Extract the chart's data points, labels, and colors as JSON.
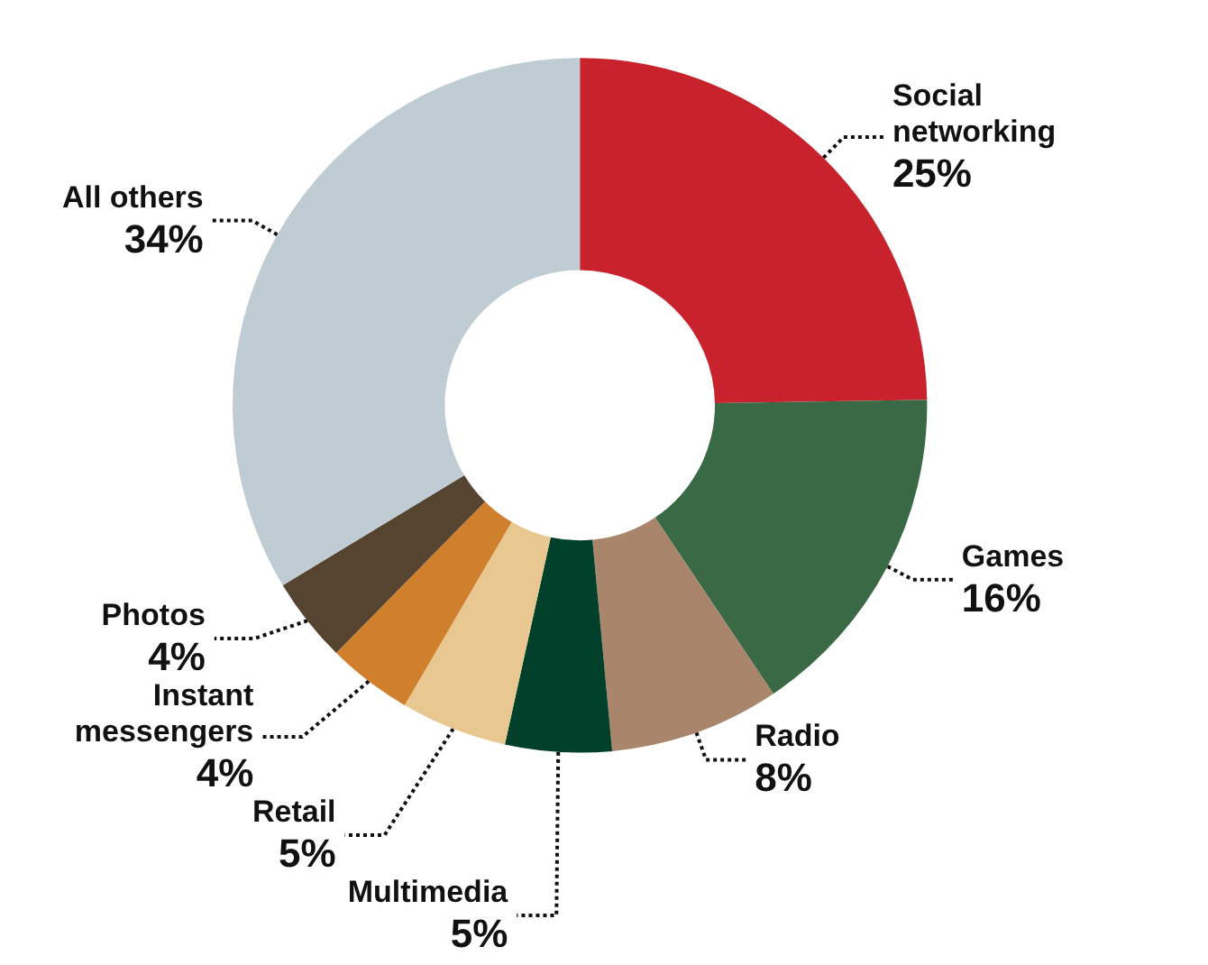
{
  "chart_data": {
    "type": "donut",
    "categories": [
      "Social networking",
      "Games",
      "Radio",
      "Multimedia",
      "Retail",
      "Instant messengers",
      "Photos",
      "All others"
    ],
    "values": [
      25,
      16,
      8,
      5,
      5,
      4,
      4,
      34
    ],
    "value_labels": [
      "25%",
      "16%",
      "8%",
      "5%",
      "5%",
      "4%",
      "4%",
      "34%"
    ],
    "colors": [
      "#c8232c",
      "#3a6a45",
      "#a8856b",
      "#003f2a",
      "#e8c890",
      "#d07f2c",
      "#554530",
      "#bfccd4"
    ],
    "legend": false
  }
}
